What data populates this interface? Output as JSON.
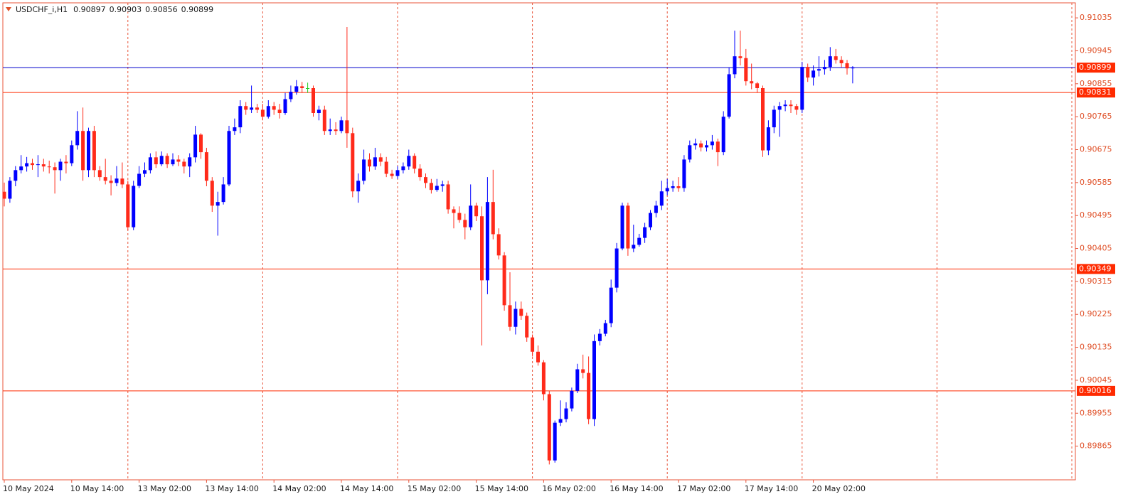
{
  "chart_data": {
    "type": "candlestick",
    "title": "USDCHF_i,H1",
    "up_color": "#0000ff",
    "down_color": "#ff2a1a",
    "doji_color": "#22cc22",
    "ylim": [
      0.89773,
      0.91076
    ],
    "yticks": [
      0.91035,
      0.90945,
      0.90855,
      0.90765,
      0.90675,
      0.90585,
      0.90495,
      0.90405,
      0.90315,
      0.90225,
      0.90135,
      0.90045,
      0.89955,
      0.89865
    ],
    "levels": [
      {
        "value": 0.90899,
        "color": "#0000cc",
        "label_color": "#ff2a00"
      },
      {
        "value": 0.90831,
        "color": "#ff2a00",
        "label_color": "#ff2a00"
      },
      {
        "value": 0.90349,
        "color": "#ff2a00",
        "label_color": "#ff2a00"
      },
      {
        "value": 0.90016,
        "color": "#ff2a00",
        "label_color": "#ff2a00"
      }
    ],
    "categories": [
      "10 May 2024",
      null,
      null,
      null,
      null,
      null,
      null,
      null,
      null,
      null,
      null,
      null,
      "10 May 14:00",
      null,
      null,
      null,
      null,
      null,
      null,
      null,
      null,
      null,
      null,
      null,
      "13 May 02:00",
      null,
      null,
      null,
      null,
      null,
      null,
      null,
      null,
      null,
      null,
      null,
      "13 May 14:00",
      null,
      null,
      null,
      null,
      null,
      null,
      null,
      null,
      null,
      null,
      null,
      "14 May 02:00",
      null,
      null,
      null,
      null,
      null,
      null,
      null,
      null,
      null,
      null,
      null,
      "14 May 14:00",
      null,
      null,
      null,
      null,
      null,
      null,
      null,
      null,
      null,
      null,
      null,
      "15 May 02:00",
      null,
      null,
      null,
      null,
      null,
      null,
      null,
      null,
      null,
      null,
      null,
      "15 May 14:00",
      null,
      null,
      null,
      null,
      null,
      null,
      null,
      null,
      null,
      null,
      null,
      "16 May 02:00",
      null,
      null,
      null,
      null,
      null,
      null,
      null,
      null,
      null,
      null,
      null,
      "16 May 14:00",
      null,
      null,
      null,
      null,
      null,
      null,
      null,
      null,
      null,
      null,
      null,
      "17 May 02:00",
      null,
      null,
      null,
      null,
      null,
      null,
      null,
      null,
      null,
      null,
      null,
      "17 May 14:00",
      null,
      null,
      null,
      null,
      null,
      null,
      null,
      null,
      null,
      null,
      null,
      "20 May 02:00",
      null,
      null,
      null,
      null,
      null,
      null,
      null
    ],
    "open": [
      0.9056,
      0.90541,
      0.9059,
      0.90619,
      0.90629,
      0.90638,
      0.90633,
      0.90635,
      0.90629,
      0.90627,
      0.90619,
      0.90642,
      0.90638,
      0.90687,
      0.90726,
      0.90619,
      0.90726,
      0.90619,
      0.906,
      0.9059,
      0.90584,
      0.90596,
      0.9058,
      0.90463,
      0.90576,
      0.90609,
      0.90619,
      0.90654,
      0.90635,
      0.90658,
      0.90635,
      0.90648,
      0.90642,
      0.90629,
      0.90654,
      0.90716,
      0.90668,
      0.9059,
      0.90522,
      0.90532,
      0.9058,
      0.90726,
      0.90736,
      0.90794,
      0.90784,
      0.9079,
      0.90784,
      0.90765,
      0.90794,
      0.90784,
      0.90775,
      0.90813,
      0.90833,
      0.90848,
      0.90843,
      0.90843,
      0.90775,
      0.90784,
      0.90726,
      0.9073,
      0.90726,
      0.90755,
      0.9072,
      0.90561,
      0.9059,
      0.90648,
      0.90629,
      0.90654,
      0.90642,
      0.90609,
      0.90603,
      0.90619,
      0.90629,
      0.90658,
      0.90623,
      0.906,
      0.90584,
      0.90565,
      0.90576,
      0.9058,
      0.90512,
      0.90502,
      0.90483,
      0.90463,
      0.90522,
      0.90493,
      0.90318,
      0.90532,
      0.90444,
      0.90386,
      0.9025,
      0.90191,
      0.9024,
      0.90221,
      0.90162,
      0.90123,
      0.90094,
      0.90007,
      0.89826,
      0.89929,
      0.89939,
      0.89968,
      0.90016,
      0.90075,
      0.90065,
      0.89939,
      0.90152,
      0.90172,
      0.90201,
      0.90298,
      0.90405,
      0.90522,
      0.90405,
      0.90415,
      0.90434,
      0.90463,
      0.90502,
      0.90522,
      0.90561,
      0.9057,
      0.90575,
      0.9057,
      0.90648,
      0.90687,
      0.90692,
      0.90681,
      0.90687,
      0.90697,
      0.90668,
      0.90765,
      0.90881,
      0.9093,
      0.90925,
      0.90862,
      0.90856,
      0.90843,
      0.90673,
      0.90736,
      0.90784,
      0.90794,
      0.90798,
      0.90794,
      0.90784,
      0.90901,
      0.90872,
      0.90891,
      0.90895,
      0.90901,
      0.9093,
      0.9092,
      0.90911,
      0.90897
    ],
    "high": [
      0.90585,
      0.906,
      0.9063,
      0.9066,
      0.90655,
      0.9065,
      0.9066,
      0.9065,
      0.90645,
      0.9064,
      0.9065,
      0.9066,
      0.907,
      0.9078,
      0.9079,
      0.90735,
      0.9074,
      0.9063,
      0.9065,
      0.90605,
      0.9063,
      0.9064,
      0.9059,
      0.9059,
      0.9063,
      0.9064,
      0.90665,
      0.9067,
      0.9067,
      0.90665,
      0.90665,
      0.9066,
      0.9065,
      0.90665,
      0.9074,
      0.9072,
      0.9068,
      0.906,
      0.9056,
      0.906,
      0.9074,
      0.9076,
      0.9081,
      0.90805,
      0.9085,
      0.908,
      0.908,
      0.9081,
      0.90805,
      0.908,
      0.9083,
      0.9085,
      0.90865,
      0.9086,
      0.90858,
      0.9085,
      0.90795,
      0.90795,
      0.9076,
      0.9075,
      0.90765,
      0.9101,
      0.90735,
      0.9061,
      0.90675,
      0.90665,
      0.9068,
      0.90665,
      0.90655,
      0.9062,
      0.9063,
      0.9064,
      0.90675,
      0.90665,
      0.90635,
      0.9061,
      0.90595,
      0.90595,
      0.9059,
      0.9059,
      0.9052,
      0.9052,
      0.905,
      0.9058,
      0.9053,
      0.9052,
      0.906,
      0.9062,
      0.9046,
      0.90395,
      0.9034,
      0.9026,
      0.9026,
      0.9023,
      0.9017,
      0.9014,
      0.901,
      0.90015,
      0.89935,
      0.8999,
      0.89985,
      0.90025,
      0.9009,
      0.90115,
      0.9011,
      0.9017,
      0.90185,
      0.9021,
      0.9032,
      0.9042,
      0.9053,
      0.9053,
      0.9047,
      0.90445,
      0.90475,
      0.9051,
      0.90535,
      0.9059,
      0.90595,
      0.9059,
      0.906,
      0.9066,
      0.907,
      0.90705,
      0.907,
      0.907,
      0.90715,
      0.90705,
      0.9078,
      0.909,
      0.91,
      0.91,
      0.9095,
      0.9091,
      0.9086,
      0.9085,
      0.90755,
      0.90795,
      0.90805,
      0.9081,
      0.9081,
      0.908,
      0.90915,
      0.9091,
      0.90905,
      0.9093,
      0.9092,
      0.90955,
      0.9095,
      0.9093,
      0.9092,
      0.90903
    ],
    "low": [
      0.9052,
      0.9053,
      0.90575,
      0.9061,
      0.90615,
      0.9062,
      0.906,
      0.90615,
      0.9061,
      0.90555,
      0.9059,
      0.9061,
      0.9063,
      0.90675,
      0.9059,
      0.906,
      0.906,
      0.9059,
      0.9058,
      0.9055,
      0.90575,
      0.9057,
      0.90455,
      0.90455,
      0.9057,
      0.906,
      0.9061,
      0.90625,
      0.9063,
      0.90625,
      0.9063,
      0.9063,
      0.9061,
      0.906,
      0.9064,
      0.9065,
      0.90575,
      0.90505,
      0.9044,
      0.90525,
      0.90575,
      0.90715,
      0.9072,
      0.9077,
      0.90775,
      0.90775,
      0.90755,
      0.9076,
      0.9077,
      0.9076,
      0.9077,
      0.90805,
      0.90825,
      0.9083,
      0.9083,
      0.90765,
      0.90755,
      0.90715,
      0.90715,
      0.90715,
      0.9072,
      0.9068,
      0.90545,
      0.9053,
      0.9058,
      0.90615,
      0.9062,
      0.9063,
      0.906,
      0.90595,
      0.90595,
      0.9061,
      0.9062,
      0.9061,
      0.9059,
      0.9057,
      0.90555,
      0.9056,
      0.9056,
      0.905,
      0.9046,
      0.90475,
      0.9043,
      0.90455,
      0.9048,
      0.9014,
      0.9028,
      0.9043,
      0.90375,
      0.90235,
      0.9018,
      0.9017,
      0.9021,
      0.9015,
      0.9011,
      0.90085,
      0.8999,
      0.89815,
      0.8982,
      0.8992,
      0.8993,
      0.8996,
      0.9001,
      0.9005,
      0.89925,
      0.8992,
      0.9014,
      0.90165,
      0.9019,
      0.90285,
      0.904,
      0.90385,
      0.90395,
      0.9041,
      0.9042,
      0.90455,
      0.9049,
      0.9051,
      0.9055,
      0.9056,
      0.9056,
      0.9056,
      0.9064,
      0.90675,
      0.9067,
      0.9067,
      0.90675,
      0.9063,
      0.9066,
      0.9076,
      0.9087,
      0.90905,
      0.9085,
      0.9084,
      0.9083,
      0.90655,
      0.9066,
      0.9072,
      0.9071,
      0.9078,
      0.90775,
      0.9077,
      0.90775,
      0.9086,
      0.9085,
      0.90875,
      0.9088,
      0.9089,
      0.9091,
      0.909,
      0.9088,
      0.90856
    ],
    "close": [
      0.90541,
      0.9059,
      0.90619,
      0.90629,
      0.90638,
      0.90633,
      0.90635,
      0.90629,
      0.90627,
      0.90619,
      0.90642,
      0.90638,
      0.90687,
      0.90726,
      0.90619,
      0.90726,
      0.90619,
      0.906,
      0.9059,
      0.90584,
      0.90596,
      0.9058,
      0.90463,
      0.90576,
      0.90609,
      0.90619,
      0.90654,
      0.90635,
      0.90658,
      0.90635,
      0.90648,
      0.90642,
      0.90629,
      0.90654,
      0.90716,
      0.90668,
      0.9059,
      0.90522,
      0.90532,
      0.9058,
      0.90726,
      0.90736,
      0.90794,
      0.90784,
      0.9079,
      0.90784,
      0.90765,
      0.90794,
      0.90784,
      0.90775,
      0.90813,
      0.90833,
      0.90848,
      0.90843,
      0.90843,
      0.90775,
      0.90784,
      0.90726,
      0.9073,
      0.90726,
      0.90755,
      0.9072,
      0.90561,
      0.9059,
      0.90648,
      0.90629,
      0.90654,
      0.90642,
      0.90609,
      0.90603,
      0.90619,
      0.90629,
      0.90658,
      0.90623,
      0.906,
      0.90584,
      0.90565,
      0.90576,
      0.9058,
      0.90512,
      0.90502,
      0.90483,
      0.90463,
      0.90522,
      0.90493,
      0.90318,
      0.90532,
      0.90444,
      0.90386,
      0.9025,
      0.90191,
      0.9024,
      0.90221,
      0.90162,
      0.90123,
      0.90094,
      0.90007,
      0.89826,
      0.89929,
      0.89939,
      0.89968,
      0.90016,
      0.90075,
      0.90065,
      0.89939,
      0.90152,
      0.90172,
      0.90201,
      0.90298,
      0.90405,
      0.90522,
      0.90405,
      0.90415,
      0.90434,
      0.90463,
      0.90502,
      0.90522,
      0.90561,
      0.9057,
      0.90575,
      0.9057,
      0.90648,
      0.90687,
      0.90692,
      0.90681,
      0.90687,
      0.90697,
      0.90668,
      0.90765,
      0.90881,
      0.9093,
      0.90925,
      0.90862,
      0.90856,
      0.90843,
      0.90673,
      0.90736,
      0.90784,
      0.90794,
      0.90798,
      0.90794,
      0.90784,
      0.90901,
      0.90872,
      0.90891,
      0.90895,
      0.90901,
      0.9093,
      0.9092,
      0.90911,
      0.90897,
      0.90899
    ]
  }
}
